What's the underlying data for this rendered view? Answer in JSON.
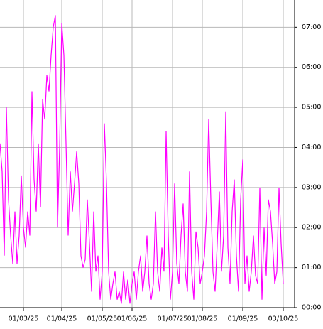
{
  "chart_data": {
    "type": "line",
    "categories": [
      null,
      null,
      null,
      null,
      null,
      null,
      null,
      null,
      null,
      null,
      null,
      "01/03/25",
      null,
      null,
      null,
      null,
      null,
      null,
      null,
      null,
      null,
      null,
      null,
      null,
      null,
      null,
      null,
      null,
      null,
      "01/04/25",
      null,
      null,
      null,
      null,
      null,
      null,
      null,
      null,
      null,
      null,
      null,
      null,
      null,
      null,
      null,
      null,
      null,
      null,
      "01/05/25",
      null,
      null,
      null,
      null,
      null,
      null,
      null,
      null,
      null,
      null,
      null,
      null,
      null,
      "01/06/25",
      null,
      null,
      null,
      null,
      null,
      null,
      null,
      null,
      null,
      null,
      null,
      null,
      null,
      null,
      null,
      null,
      null,
      null,
      "01/07/25",
      null,
      null,
      null,
      null,
      null,
      null,
      null,
      null,
      null,
      null,
      null,
      null,
      null,
      "01/08/25",
      null,
      null,
      null,
      null,
      null,
      null,
      null,
      null,
      null,
      null,
      null,
      null,
      null,
      null,
      null,
      null,
      null,
      null,
      "01/09/25",
      null,
      null,
      null,
      null,
      null,
      null,
      null,
      null,
      null,
      null,
      null,
      null,
      null,
      null,
      null,
      null,
      null,
      null,
      "03/10/25"
    ],
    "series": [
      {
        "name": null,
        "color": "#ff00ff",
        "values": [
          4.1,
          3.4,
          1.3,
          5.0,
          2.7,
          1.8,
          1.1,
          2.4,
          1.1,
          1.8,
          3.3,
          2.0,
          1.5,
          2.4,
          1.8,
          5.4,
          3.2,
          2.4,
          4.1,
          2.5,
          5.2,
          4.7,
          5.8,
          5.4,
          6.3,
          7.0,
          7.3,
          2.0,
          4.0,
          7.1,
          6.3,
          4.1,
          1.8,
          3.4,
          2.4,
          3.1,
          3.9,
          3.1,
          1.3,
          1.0,
          1.2,
          2.7,
          1.6,
          0.4,
          2.4,
          0.9,
          1.3,
          0.2,
          0.9,
          4.6,
          3.1,
          0.9,
          0.2,
          0.6,
          0.9,
          0.2,
          0.4,
          0.1,
          0.9,
          0.2,
          0.7,
          0.1,
          0.6,
          0.9,
          0.2,
          0.9,
          1.3,
          0.4,
          0.9,
          1.8,
          0.6,
          0.2,
          0.6,
          2.4,
          0.9,
          0.4,
          1.5,
          0.9,
          4.4,
          1.8,
          0.2,
          0.9,
          3.1,
          1.1,
          0.6,
          1.8,
          2.6,
          0.9,
          0.4,
          3.4,
          0.9,
          0.2,
          1.9,
          1.5,
          0.6,
          0.9,
          1.3,
          2.4,
          4.7,
          2.7,
          0.9,
          0.4,
          1.6,
          2.9,
          0.9,
          1.8,
          4.9,
          1.5,
          0.6,
          2.4,
          3.2,
          1.3,
          0.4,
          2.7,
          3.7,
          0.6,
          1.3,
          0.4,
          0.9,
          1.8,
          0.8,
          0.6,
          3.0,
          0.2,
          2.0,
          0.8,
          2.7,
          2.4,
          1.6,
          0.6,
          0.9,
          3.0,
          1.6,
          0.6
        ]
      }
    ],
    "ylim": [
      0,
      7.68
    ],
    "yticks": [
      {
        "value": 0,
        "label": "00:00"
      },
      {
        "value": 1,
        "label": "01:00"
      },
      {
        "value": 2,
        "label": "02:00"
      },
      {
        "value": 3,
        "label": "03:00"
      },
      {
        "value": 4,
        "label": "04:00"
      },
      {
        "value": 5,
        "label": "05:00"
      },
      {
        "value": 6,
        "label": "06:00"
      },
      {
        "value": 7,
        "label": "07:00"
      }
    ],
    "grid": true
  }
}
